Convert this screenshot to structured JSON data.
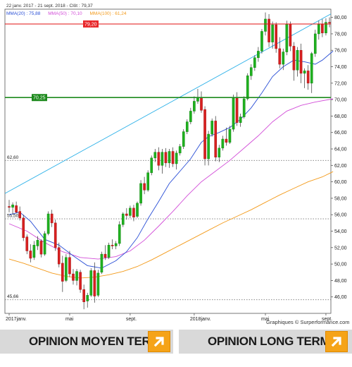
{
  "header": {
    "range": "22 janv. 2017 - 21 sept. 2018 - Clôt : 79,37",
    "legend": [
      {
        "label": "MMA(20)",
        "value": "75,88",
        "color": "#2a4fd6"
      },
      {
        "label": "MMA(50)",
        "value": "70,10",
        "color": "#d24dd8"
      },
      {
        "label": "MMA(100)",
        "value": "61,24",
        "color": "#f39a1a"
      }
    ]
  },
  "credit": "Graphiques © Surperformance.com",
  "opinions": {
    "mid": "OPINION MOYEN TERME",
    "long": "OPINION LONG TERME"
  },
  "chart_data": {
    "type": "candlestick",
    "ylim": [
      44,
      81
    ],
    "y_ticks": [
      "46,00",
      "48,00",
      "50,00",
      "52,00",
      "54,00",
      "56,00",
      "58,00",
      "60,00",
      "62,00",
      "64,00",
      "66,00",
      "68,00",
      "70,00",
      "72,00",
      "74,00",
      "76,00",
      "78,00",
      "80,00"
    ],
    "x_labels": [
      "2017janv.",
      "mai",
      "sept.",
      "2018janv.",
      "mai",
      "sept."
    ],
    "levels": [
      {
        "label": "79,20",
        "value": 79.2,
        "kind": "resistance",
        "color": "#e01010",
        "labelBg": "#e8272a"
      },
      {
        "label": "70,25",
        "value": 70.25,
        "kind": "support",
        "color": "#1d8a1d",
        "labelBg": "#1d8a1d"
      },
      {
        "label": "62,60",
        "value": 62.6,
        "kind": "dotted"
      },
      {
        "label": "55,50",
        "value": 55.5,
        "kind": "dotted"
      },
      {
        "label": "45,66",
        "value": 45.66,
        "kind": "dotted"
      }
    ],
    "trendline": {
      "from": [
        0,
        60.3
      ],
      "to": [
        92,
        80.8
      ],
      "color": "#2ab0e8"
    },
    "candles": [
      [
        57.0,
        57.8,
        56.3,
        56.9
      ],
      [
        56.9,
        57.5,
        56.0,
        57.2
      ],
      [
        57.1,
        57.6,
        56.2,
        56.3
      ],
      [
        56.4,
        57.0,
        55.3,
        55.6
      ],
      [
        55.6,
        56.0,
        52.8,
        53.2
      ],
      [
        53.3,
        53.6,
        51.2,
        51.6
      ],
      [
        51.6,
        52.4,
        50.2,
        50.7
      ],
      [
        50.8,
        52.8,
        50.5,
        52.3
      ],
      [
        52.2,
        53.4,
        51.7,
        52.9
      ],
      [
        52.8,
        53.0,
        50.8,
        51.2
      ],
      [
        51.2,
        54.0,
        51.0,
        53.7
      ],
      [
        53.7,
        56.4,
        53.5,
        56.1
      ],
      [
        56.1,
        56.6,
        54.5,
        55.0
      ],
      [
        55.0,
        55.4,
        51.6,
        52.0
      ],
      [
        52.0,
        52.6,
        49.6,
        50.0
      ],
      [
        50.1,
        51.0,
        46.6,
        47.9
      ],
      [
        48.0,
        51.2,
        47.8,
        50.8
      ],
      [
        50.8,
        51.6,
        48.4,
        48.8
      ],
      [
        48.8,
        49.4,
        47.5,
        48.0
      ],
      [
        48.0,
        49.4,
        47.4,
        49.1
      ],
      [
        49.0,
        49.3,
        46.5,
        46.9
      ],
      [
        46.9,
        47.5,
        44.5,
        45.4
      ],
      [
        45.5,
        46.5,
        44.7,
        46.2
      ],
      [
        46.2,
        49.5,
        46.0,
        49.2
      ],
      [
        49.2,
        50.2,
        45.3,
        46.1
      ],
      [
        46.2,
        49.3,
        46.0,
        48.9
      ],
      [
        49.0,
        51.5,
        48.8,
        51.2
      ],
      [
        51.2,
        52.3,
        50.5,
        50.8
      ],
      [
        50.8,
        52.6,
        50.6,
        52.3
      ],
      [
        52.3,
        53.0,
        51.8,
        52.2
      ],
      [
        52.2,
        52.8,
        51.8,
        52.5
      ],
      [
        52.5,
        55.2,
        52.2,
        54.8
      ],
      [
        54.8,
        56.3,
        54.5,
        56.1
      ],
      [
        56.1,
        56.8,
        55.4,
        55.9
      ],
      [
        55.9,
        57.1,
        55.6,
        56.8
      ],
      [
        56.8,
        57.2,
        55.2,
        55.7
      ],
      [
        55.8,
        57.6,
        55.6,
        57.4
      ],
      [
        57.4,
        60.2,
        57.1,
        59.8
      ],
      [
        59.8,
        60.6,
        58.5,
        59.0
      ],
      [
        59.0,
        61.4,
        58.8,
        61.1
      ],
      [
        61.1,
        63.2,
        60.8,
        62.9
      ],
      [
        62.9,
        64.0,
        62.4,
        63.6
      ],
      [
        63.6,
        64.2,
        61.4,
        62.0
      ],
      [
        62.0,
        64.0,
        61.0,
        63.6
      ],
      [
        63.6,
        64.1,
        61.8,
        62.3
      ],
      [
        62.3,
        64.0,
        61.7,
        63.7
      ],
      [
        63.7,
        64.2,
        61.8,
        62.2
      ],
      [
        62.2,
        63.8,
        61.5,
        63.5
      ],
      [
        63.5,
        64.6,
        63.2,
        64.3
      ],
      [
        64.3,
        66.4,
        64.0,
        66.1
      ],
      [
        66.1,
        67.6,
        65.8,
        67.3
      ],
      [
        67.3,
        69.0,
        67.0,
        68.6
      ],
      [
        68.6,
        70.4,
        68.3,
        69.8
      ],
      [
        69.8,
        71.3,
        69.5,
        70.2
      ],
      [
        70.2,
        71.0,
        68.4,
        68.7
      ],
      [
        68.8,
        69.2,
        62.0,
        62.8
      ],
      [
        62.8,
        66.2,
        62.0,
        65.8
      ],
      [
        65.8,
        67.7,
        65.5,
        67.4
      ],
      [
        67.4,
        68.0,
        62.5,
        63.0
      ],
      [
        63.0,
        64.5,
        62.4,
        64.1
      ],
      [
        64.1,
        65.6,
        63.8,
        65.2
      ],
      [
        65.2,
        66.6,
        64.4,
        64.8
      ],
      [
        64.8,
        66.8,
        64.6,
        66.4
      ],
      [
        66.4,
        70.6,
        66.1,
        70.2
      ],
      [
        70.2,
        70.9,
        66.8,
        67.2
      ],
      [
        67.2,
        68.3,
        66.7,
        67.9
      ],
      [
        67.9,
        70.4,
        67.7,
        70.1
      ],
      [
        70.1,
        73.2,
        69.9,
        72.9
      ],
      [
        72.9,
        74.3,
        72.4,
        73.9
      ],
      [
        73.9,
        75.4,
        73.5,
        75.1
      ],
      [
        75.1,
        76.4,
        74.6,
        75.9
      ],
      [
        75.9,
        78.6,
        75.6,
        78.3
      ],
      [
        78.3,
        80.6,
        77.8,
        79.8
      ],
      [
        79.8,
        80.4,
        76.4,
        77.0
      ],
      [
        77.0,
        79.5,
        76.2,
        79.1
      ],
      [
        79.1,
        79.4,
        75.7,
        76.2
      ],
      [
        76.2,
        77.6,
        73.8,
        74.3
      ],
      [
        74.3,
        76.2,
        73.6,
        75.8
      ],
      [
        75.8,
        79.6,
        75.4,
        79.2
      ],
      [
        79.2,
        79.5,
        75.9,
        76.5
      ],
      [
        76.5,
        77.0,
        72.3,
        73.6
      ],
      [
        73.6,
        76.4,
        72.8,
        76.0
      ],
      [
        76.0,
        76.8,
        72.0,
        73.2
      ],
      [
        73.2,
        73.8,
        71.4,
        73.5
      ],
      [
        73.5,
        74.2,
        71.2,
        72.0
      ],
      [
        72.0,
        75.8,
        70.8,
        75.6
      ],
      [
        75.6,
        78.5,
        75.2,
        78.0
      ],
      [
        78.0,
        79.6,
        77.3,
        79.2
      ],
      [
        79.2,
        79.8,
        77.6,
        78.1
      ],
      [
        78.1,
        79.9,
        77.8,
        79.4
      ],
      [
        79.4,
        80.0,
        78.8,
        79.37
      ]
    ],
    "ma20": [
      [
        0,
        56.0
      ],
      [
        3,
        56.3
      ],
      [
        6,
        55.2
      ],
      [
        10,
        53.0
      ],
      [
        14,
        52.3
      ],
      [
        18,
        51.0
      ],
      [
        22,
        49.8
      ],
      [
        26,
        49.5
      ],
      [
        30,
        50.4
      ],
      [
        33,
        51.5
      ],
      [
        36,
        53.2
      ],
      [
        39,
        55.5
      ],
      [
        42,
        57.6
      ],
      [
        45,
        59.8
      ],
      [
        48,
        61.3
      ],
      [
        51,
        62.8
      ],
      [
        54,
        64.8
      ],
      [
        56,
        65.5
      ],
      [
        59,
        66.0
      ],
      [
        62,
        66.6
      ],
      [
        65,
        67.6
      ],
      [
        68,
        69.0
      ],
      [
        71,
        70.8
      ],
      [
        74,
        72.8
      ],
      [
        77,
        74.0
      ],
      [
        80,
        74.8
      ],
      [
        83,
        74.6
      ],
      [
        86,
        74.3
      ],
      [
        88,
        74.8
      ],
      [
        91,
        75.9
      ]
    ],
    "ma50": [
      [
        0,
        54.9
      ],
      [
        5,
        54.0
      ],
      [
        10,
        52.6
      ],
      [
        15,
        51.5
      ],
      [
        20,
        50.8
      ],
      [
        25,
        50.6
      ],
      [
        30,
        50.9
      ],
      [
        34,
        51.6
      ],
      [
        38,
        52.9
      ],
      [
        42,
        54.6
      ],
      [
        46,
        56.4
      ],
      [
        50,
        58.3
      ],
      [
        54,
        60.0
      ],
      [
        58,
        61.3
      ],
      [
        62,
        62.6
      ],
      [
        66,
        64.1
      ],
      [
        70,
        65.6
      ],
      [
        74,
        67.3
      ],
      [
        78,
        68.6
      ],
      [
        82,
        69.3
      ],
      [
        86,
        69.7
      ],
      [
        91,
        70.1
      ]
    ],
    "ma100": [
      [
        0,
        50.6
      ],
      [
        4,
        50.1
      ],
      [
        8,
        49.5
      ],
      [
        12,
        48.9
      ],
      [
        16,
        48.5
      ],
      [
        20,
        48.3
      ],
      [
        24,
        48.4
      ],
      [
        28,
        48.7
      ],
      [
        32,
        49.1
      ],
      [
        36,
        49.7
      ],
      [
        40,
        50.5
      ],
      [
        44,
        51.4
      ],
      [
        48,
        52.3
      ],
      [
        52,
        53.2
      ],
      [
        56,
        54.1
      ],
      [
        60,
        55.0
      ],
      [
        64,
        55.8
      ],
      [
        68,
        56.6
      ],
      [
        72,
        57.5
      ],
      [
        76,
        58.4
      ],
      [
        80,
        59.2
      ],
      [
        84,
        60.0
      ],
      [
        88,
        60.6
      ],
      [
        91,
        61.24
      ]
    ]
  }
}
